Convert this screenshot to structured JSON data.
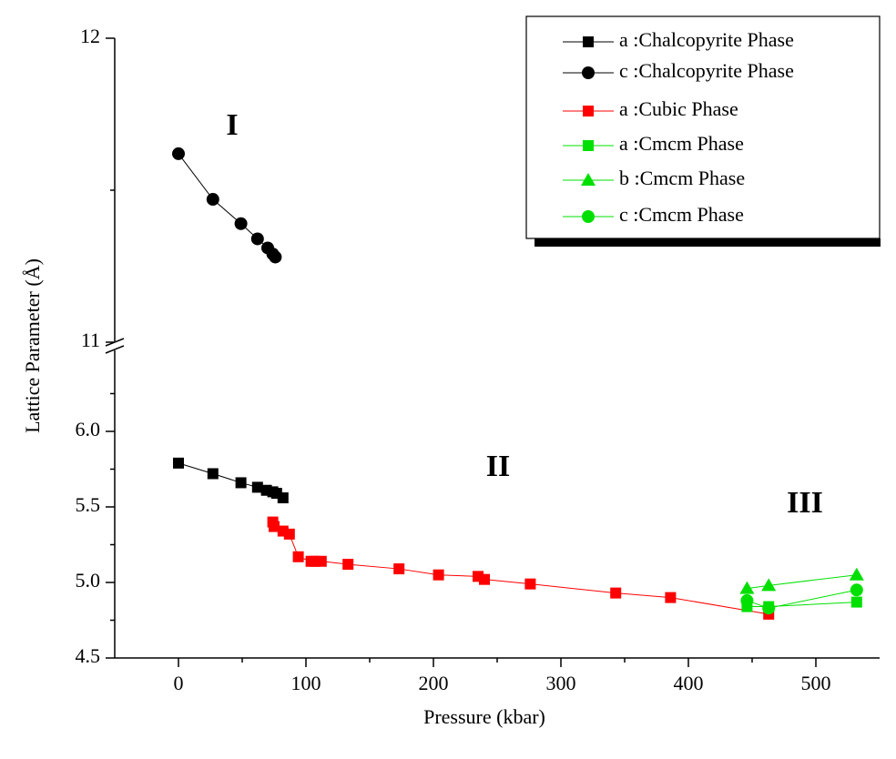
{
  "chart_data": {
    "type": "scatter",
    "x_label": "Pressure (kbar)",
    "y_label": "Lattice Parameter (Å)",
    "annotations": [
      "I",
      "II",
      "III"
    ],
    "xlim": [
      -50,
      550
    ],
    "xticks": [
      0,
      100,
      200,
      300,
      400,
      500
    ],
    "minor_xticks": [
      50,
      150,
      250,
      350,
      450
    ],
    "ylim": [
      4.5,
      12
    ],
    "y_break": [
      6.5,
      11
    ],
    "yticks": [
      {
        "value": 4.5,
        "label": "4.5"
      },
      {
        "value": 5.0,
        "label": "5.0"
      },
      {
        "value": 5.5,
        "label": "5.5"
      },
      {
        "value": 6.0,
        "label": "6.0"
      },
      11,
      12
    ],
    "minor_yticks": [
      4.75,
      5.25,
      5.75,
      6.25,
      11.5
    ],
    "legend": "upper right",
    "series": [
      {
        "name": "a :Chalcopyrite Phase",
        "color": "#000000",
        "marker": "square",
        "x": [
          0,
          27,
          49,
          62,
          69,
          74,
          77,
          82
        ],
        "values": [
          5.79,
          5.72,
          5.66,
          5.63,
          5.61,
          5.6,
          5.59,
          5.56
        ]
      },
      {
        "name": "c :Chalcopyrite Phase",
        "color": "#000000",
        "marker": "circle",
        "x": [
          0,
          27,
          49,
          62,
          70,
          74,
          76
        ],
        "values": [
          11.62,
          11.47,
          11.39,
          11.34,
          11.31,
          11.29,
          11.28
        ]
      },
      {
        "name": "a :Cubic Phase",
        "color": "#ff0000",
        "marker": "square",
        "x": [
          74,
          75,
          82,
          87,
          94,
          104,
          107,
          112,
          133,
          173,
          204,
          235,
          240,
          276,
          343,
          386,
          463
        ],
        "values": [
          5.4,
          5.37,
          5.34,
          5.32,
          5.17,
          5.14,
          5.14,
          5.14,
          5.12,
          5.09,
          5.05,
          5.04,
          5.02,
          4.99,
          4.93,
          4.9,
          4.79
        ]
      },
      {
        "name": "a :Cmcm Phase",
        "color": "#00e000",
        "marker": "square",
        "x": [
          446,
          463,
          532
        ],
        "values": [
          4.84,
          4.84,
          4.87
        ]
      },
      {
        "name": "b :Cmcm Phase",
        "color": "#00e000",
        "marker": "triangle",
        "x": [
          446,
          463,
          532
        ],
        "values": [
          4.96,
          4.98,
          5.05
        ]
      },
      {
        "name": "c :Cmcm Phase",
        "color": "#00e000",
        "marker": "circle",
        "x": [
          446,
          463,
          532
        ],
        "values": [
          4.88,
          4.83,
          4.95
        ]
      }
    ]
  }
}
